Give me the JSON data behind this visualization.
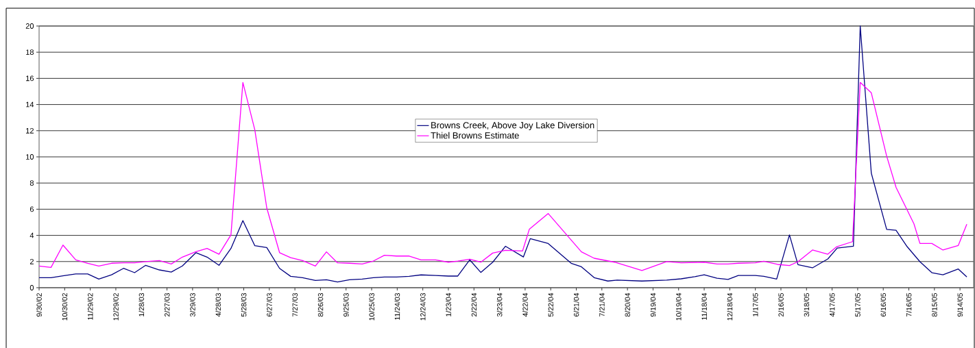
{
  "chart_data": {
    "type": "line",
    "xlim": [
      "2002-09-30",
      "2005-09-30"
    ],
    "ylim": [
      0,
      20
    ],
    "yticks": [
      0,
      2,
      4,
      6,
      8,
      10,
      12,
      14,
      16,
      18,
      20
    ],
    "xticks": [
      {
        "value": "2002-09-30",
        "label": "9/30/02"
      },
      {
        "value": "2002-10-30",
        "label": "10/30/02"
      },
      {
        "value": "2002-11-29",
        "label": "11/29/02"
      },
      {
        "value": "2002-12-29",
        "label": "12/29/02"
      },
      {
        "value": "2003-01-28",
        "label": "1/28/03"
      },
      {
        "value": "2003-02-27",
        "label": "2/27/03"
      },
      {
        "value": "2003-03-29",
        "label": "3/29/03"
      },
      {
        "value": "2003-04-28",
        "label": "4/28/03"
      },
      {
        "value": "2003-05-28",
        "label": "5/28/03"
      },
      {
        "value": "2003-06-27",
        "label": "6/27/03"
      },
      {
        "value": "2003-07-27",
        "label": "7/27/03"
      },
      {
        "value": "2003-08-26",
        "label": "8/26/03"
      },
      {
        "value": "2003-09-25",
        "label": "9/25/03"
      },
      {
        "value": "2003-10-25",
        "label": "10/25/03"
      },
      {
        "value": "2003-11-24",
        "label": "11/24/03"
      },
      {
        "value": "2003-12-24",
        "label": "12/24/03"
      },
      {
        "value": "2004-01-23",
        "label": "1/23/04"
      },
      {
        "value": "2004-02-22",
        "label": "2/22/04"
      },
      {
        "value": "2004-03-23",
        "label": "3/23/04"
      },
      {
        "value": "2004-04-22",
        "label": "4/22/04"
      },
      {
        "value": "2004-05-22",
        "label": "5/22/04"
      },
      {
        "value": "2004-06-21",
        "label": "6/21/04"
      },
      {
        "value": "2004-07-21",
        "label": "7/21/04"
      },
      {
        "value": "2004-08-20",
        "label": "8/20/04"
      },
      {
        "value": "2004-09-19",
        "label": "9/19/04"
      },
      {
        "value": "2004-10-19",
        "label": "10/19/04"
      },
      {
        "value": "2004-11-18",
        "label": "11/18/04"
      },
      {
        "value": "2004-12-18",
        "label": "12/18/04"
      },
      {
        "value": "2005-01-17",
        "label": "1/17/05"
      },
      {
        "value": "2005-02-16",
        "label": "2/16/05"
      },
      {
        "value": "2005-03-18",
        "label": "3/18/05"
      },
      {
        "value": "2005-04-17",
        "label": "4/17/05"
      },
      {
        "value": "2005-05-17",
        "label": "5/17/05"
      },
      {
        "value": "2005-06-16",
        "label": "6/16/05"
      },
      {
        "value": "2005-07-16",
        "label": "7/16/05"
      },
      {
        "value": "2005-08-15",
        "label": "8/15/05"
      },
      {
        "value": "2005-09-14",
        "label": "9/14/05"
      }
    ],
    "grid": "y",
    "legend": "center",
    "line_style": "solid",
    "series": [
      {
        "name": "Browns Creek, Above Joy Lake Diversion",
        "color": "#000080",
        "x": [
          "2002-09-30",
          "2002-10-14",
          "2002-10-28",
          "2002-11-12",
          "2002-11-26",
          "2002-12-09",
          "2002-12-24",
          "2003-01-07",
          "2003-01-20",
          "2003-02-02",
          "2003-02-18",
          "2003-03-04",
          "2003-03-17",
          "2003-04-02",
          "2003-04-15",
          "2003-04-29",
          "2003-05-13",
          "2003-05-27",
          "2003-06-10",
          "2003-06-24",
          "2003-07-09",
          "2003-07-22",
          "2003-08-05",
          "2003-08-20",
          "2003-09-02",
          "2003-09-15",
          "2003-09-29",
          "2003-10-14",
          "2003-10-27",
          "2003-11-09",
          "2003-11-23",
          "2003-12-08",
          "2003-12-22",
          "2004-01-08",
          "2004-01-23",
          "2004-02-03",
          "2004-02-17",
          "2004-03-01",
          "2004-03-15",
          "2004-03-30",
          "2004-04-20",
          "2004-04-28",
          "2004-05-19",
          "2004-06-15",
          "2004-06-27",
          "2004-07-12",
          "2004-07-28",
          "2004-08-08",
          "2004-09-06",
          "2004-10-05",
          "2004-10-22",
          "2004-11-07",
          "2004-11-18",
          "2004-12-03",
          "2004-12-16",
          "2004-12-28",
          "2005-01-17",
          "2005-01-27",
          "2005-02-11",
          "2005-02-26",
          "2005-03-08",
          "2005-03-25",
          "2005-04-12",
          "2005-04-23",
          "2005-05-12",
          "2005-05-20",
          "2005-06-02",
          "2005-06-20",
          "2005-07-01",
          "2005-07-14",
          "2005-07-29",
          "2005-08-12",
          "2005-08-25",
          "2005-09-12",
          "2005-09-22"
        ],
        "values": [
          0.77,
          0.77,
          0.91,
          1.05,
          1.05,
          0.66,
          0.99,
          1.48,
          1.15,
          1.71,
          1.36,
          1.2,
          1.66,
          2.68,
          2.34,
          1.71,
          3.0,
          5.13,
          3.21,
          3.07,
          1.48,
          0.87,
          0.77,
          0.56,
          0.61,
          0.44,
          0.61,
          0.66,
          0.77,
          0.82,
          0.82,
          0.87,
          0.98,
          0.94,
          0.89,
          0.89,
          2.13,
          1.17,
          1.95,
          3.17,
          2.35,
          3.75,
          3.38,
          1.87,
          1.6,
          0.77,
          0.51,
          0.58,
          0.51,
          0.58,
          0.68,
          0.84,
          0.99,
          0.73,
          0.63,
          0.94,
          0.94,
          0.87,
          0.66,
          4.04,
          1.76,
          1.52,
          2.2,
          3.03,
          3.17,
          20.0,
          8.75,
          4.46,
          4.39,
          3.14,
          1.99,
          1.15,
          0.99,
          1.43,
          0.82
        ]
      },
      {
        "name": "Thiel Browns Estimate",
        "color": "#ff00ff",
        "x": [
          "2002-09-30",
          "2002-10-14",
          "2002-10-28",
          "2002-11-12",
          "2002-11-26",
          "2002-12-09",
          "2002-12-24",
          "2003-01-07",
          "2003-01-20",
          "2003-02-02",
          "2003-02-18",
          "2003-03-04",
          "2003-03-17",
          "2003-04-02",
          "2003-04-15",
          "2003-04-29",
          "2003-05-13",
          "2003-05-27",
          "2003-06-10",
          "2003-06-24",
          "2003-07-09",
          "2003-07-22",
          "2003-08-05",
          "2003-08-20",
          "2003-09-02",
          "2003-09-15",
          "2003-09-29",
          "2003-10-14",
          "2003-10-27",
          "2003-11-09",
          "2003-11-23",
          "2003-12-08",
          "2003-12-22",
          "2004-01-08",
          "2004-01-23",
          "2004-02-03",
          "2004-02-17",
          "2004-03-01",
          "2004-03-15",
          "2004-03-30",
          "2004-04-19",
          "2004-04-27",
          "2004-05-19",
          "2004-06-27",
          "2004-07-12",
          "2004-08-05",
          "2004-09-06",
          "2004-10-05",
          "2004-10-22",
          "2004-11-18",
          "2004-12-03",
          "2004-12-16",
          "2004-12-28",
          "2005-01-17",
          "2005-01-27",
          "2005-02-12",
          "2005-02-26",
          "2005-03-08",
          "2005-03-25",
          "2005-04-12",
          "2005-04-22",
          "2005-05-11",
          "2005-05-20",
          "2005-06-02",
          "2005-06-20",
          "2005-07-01",
          "2005-07-22",
          "2005-07-29",
          "2005-08-12",
          "2005-08-25",
          "2005-09-12",
          "2005-09-22"
        ],
        "values": [
          1.66,
          1.55,
          3.26,
          2.13,
          1.87,
          1.66,
          1.87,
          1.9,
          1.9,
          2.0,
          2.07,
          1.81,
          2.34,
          2.75,
          3.0,
          2.56,
          4.04,
          15.69,
          12.06,
          6.1,
          2.68,
          2.3,
          2.07,
          1.66,
          2.74,
          1.9,
          1.87,
          1.81,
          2.04,
          2.48,
          2.42,
          2.42,
          2.13,
          2.13,
          1.95,
          2.04,
          2.18,
          1.95,
          2.65,
          2.86,
          2.81,
          4.48,
          5.67,
          2.74,
          2.25,
          1.95,
          1.31,
          2.0,
          1.9,
          1.95,
          1.81,
          1.81,
          1.87,
          1.9,
          2.02,
          1.78,
          1.69,
          1.99,
          2.88,
          2.56,
          3.12,
          3.52,
          15.69,
          14.89,
          10.06,
          7.67,
          4.88,
          3.38,
          3.38,
          2.88,
          3.23,
          4.85
        ]
      }
    ]
  }
}
